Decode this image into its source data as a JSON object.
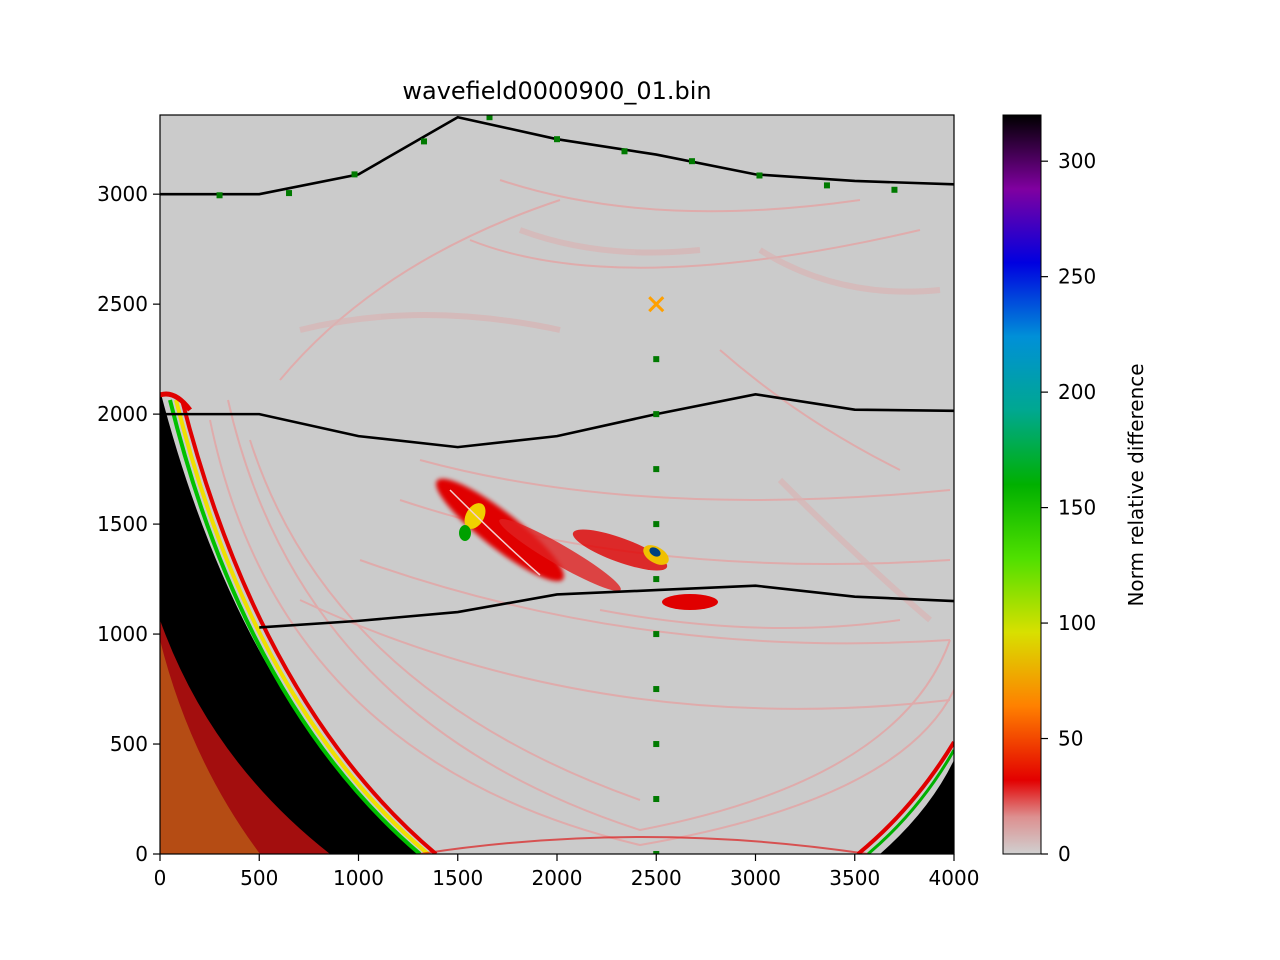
{
  "chart_data": {
    "type": "heatmap",
    "title": "wavefield0000900_01.bin",
    "xlabel": "",
    "ylabel": "",
    "xlim": [
      0,
      4000
    ],
    "ylim": [
      0,
      3360
    ],
    "x_ticks": [
      "0",
      "500",
      "1000",
      "1500",
      "2000",
      "2500",
      "3000",
      "3500",
      "4000"
    ],
    "y_ticks": [
      "0",
      "500",
      "1000",
      "1500",
      "2000",
      "2500",
      "3000"
    ],
    "background_color": "#cbcbcb",
    "colorbar": {
      "label": "Norm relative difference",
      "range": [
        0,
        320
      ],
      "ticks": [
        "0",
        "50",
        "100",
        "150",
        "200",
        "250",
        "300"
      ],
      "colormap": "nipy_spectral_r"
    },
    "interfaces": [
      {
        "x": [
          0,
          500,
          1000,
          1500,
          2000,
          2500,
          3000,
          3500,
          4000
        ],
        "y": [
          3000,
          3000,
          3090,
          3350,
          3250,
          3180,
          3090,
          3060,
          3045
        ]
      },
      {
        "x": [
          0,
          500,
          1000,
          1500,
          2000,
          2500,
          3000,
          3500,
          4000
        ],
        "y": [
          2000,
          2000,
          1900,
          1850,
          1900,
          2000,
          2090,
          2020,
          2015
        ]
      },
      {
        "x": [
          500,
          1000,
          1500,
          2000,
          2500,
          3000,
          3500,
          4000
        ],
        "y": [
          1030,
          1060,
          1100,
          1180,
          1200,
          1220,
          1170,
          1150
        ]
      }
    ],
    "receivers": {
      "x": [
        300,
        650,
        980,
        1330,
        1660,
        2000,
        2340,
        2680,
        3020,
        3360,
        3700,
        2500,
        2500,
        2500,
        2500,
        2500,
        2500,
        2500,
        2500,
        2500,
        2500
      ],
      "y": [
        2995,
        3005,
        3090,
        3240,
        3350,
        3250,
        3195,
        3150,
        3085,
        3040,
        3020,
        2250,
        2000,
        1750,
        1500,
        1250,
        1000,
        750,
        500,
        250,
        0
      ],
      "color": "#007a00"
    },
    "source": {
      "x": 2500,
      "y": 2500,
      "color": "#ffa000"
    }
  }
}
